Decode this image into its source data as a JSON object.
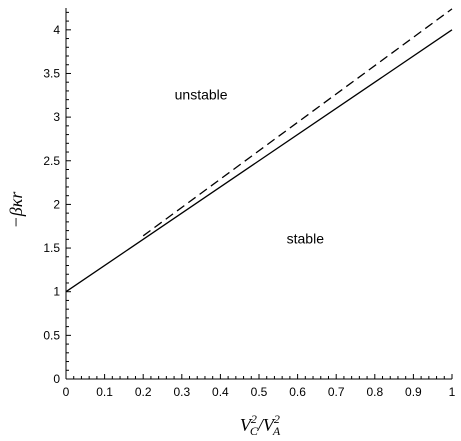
{
  "chart_data": {
    "type": "line",
    "title": "",
    "xlabel": {
      "prefix_V": "V",
      "num_sub": "C",
      "num_sup": "2",
      "slash": "/",
      "den_sub": "A",
      "den_sup": "2"
    },
    "ylabel": "−βκr",
    "xlim": [
      0,
      1
    ],
    "ylim": [
      0,
      4.25
    ],
    "x_ticks": [
      "0",
      "0.1",
      "0.2",
      "0.3",
      "0.4",
      "0.5",
      "0.6",
      "0.7",
      "0.8",
      "0.9",
      "1"
    ],
    "y_ticks": [
      "0",
      "0.5",
      "1",
      "1.5",
      "2",
      "2.5",
      "3",
      "3.5",
      "4"
    ],
    "grid": false,
    "series": [
      {
        "style": "solid",
        "color": "#000000",
        "x": [
          0,
          1
        ],
        "y": [
          1.0,
          4.0
        ]
      },
      {
        "style": "dashed",
        "color": "#000000",
        "x": [
          0.2,
          1
        ],
        "y": [
          1.64,
          4.24
        ]
      }
    ],
    "annotations": [
      {
        "text": "unstable",
        "x": 0.35,
        "y": 3.2
      },
      {
        "text": "stable",
        "x": 0.62,
        "y": 1.55
      }
    ]
  }
}
